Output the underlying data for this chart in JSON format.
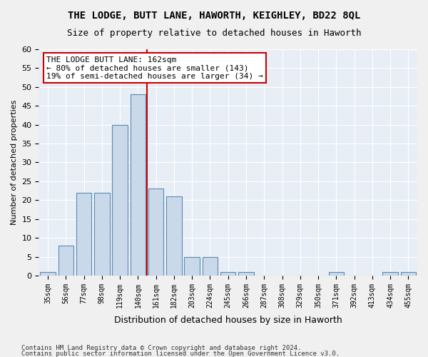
{
  "title": "THE LODGE, BUTT LANE, HAWORTH, KEIGHLEY, BD22 8QL",
  "subtitle": "Size of property relative to detached houses in Haworth",
  "xlabel": "Distribution of detached houses by size in Haworth",
  "ylabel": "Number of detached properties",
  "bar_color": "#c9d9ea",
  "bar_edge_color": "#5a8ab5",
  "background_color": "#e8eef5",
  "grid_color": "#ffffff",
  "categories": [
    "35sqm",
    "56sqm",
    "77sqm",
    "98sqm",
    "119sqm",
    "140sqm",
    "161sqm",
    "182sqm",
    "203sqm",
    "224sqm",
    "245sqm",
    "266sqm",
    "287sqm",
    "308sqm",
    "329sqm",
    "350sqm",
    "371sqm",
    "392sqm",
    "413sqm",
    "434sqm",
    "455sqm"
  ],
  "values": [
    1,
    8,
    22,
    22,
    40,
    48,
    23,
    21,
    5,
    5,
    1,
    1,
    0,
    0,
    0,
    0,
    1,
    0,
    0,
    1,
    1
  ],
  "ylim": [
    0,
    60
  ],
  "yticks": [
    0,
    5,
    10,
    15,
    20,
    25,
    30,
    35,
    40,
    45,
    50,
    55,
    60
  ],
  "vline_x": 5.5,
  "vline_color": "#cc0000",
  "annotation_text": "THE LODGE BUTT LANE: 162sqm\n← 80% of detached houses are smaller (143)\n19% of semi-detached houses are larger (34) →",
  "annotation_box_color": "#ffffff",
  "annotation_box_edge": "#cc0000",
  "footer1": "Contains HM Land Registry data © Crown copyright and database right 2024.",
  "footer2": "Contains public sector information licensed under the Open Government Licence v3.0."
}
